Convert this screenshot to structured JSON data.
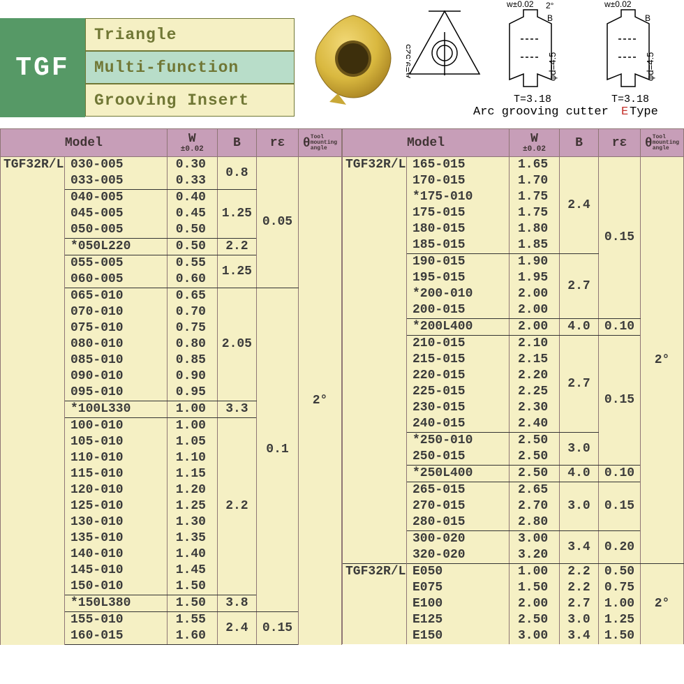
{
  "header": {
    "logo": "TGF",
    "labels": [
      "Triangle",
      "Multi-function",
      "Grooving Insert"
    ],
    "diagram": {
      "w_tol": "w±0.02",
      "angle": "2°",
      "b": "B",
      "a": "A=9.525",
      "d": "φd=4.5",
      "t": "T=3.18",
      "caption1": "Arc grooving cutter",
      "caption2_e": "E",
      "caption2_rest": " Type"
    }
  },
  "columns": {
    "model": "Model",
    "w_main": "W",
    "w_sub": "±0.02",
    "b": "B",
    "re": "rε",
    "theta": "θ",
    "theta_sub": "Tool\nmounting\nangle"
  },
  "table1": {
    "prefix": "TGF32R/L",
    "groups": [
      {
        "rows": [
          {
            "m": "030-005",
            "w": "0.30"
          },
          {
            "m": "033-005",
            "w": "0.33"
          }
        ],
        "b": "0.8"
      },
      {
        "rows": [
          {
            "m": "040-005",
            "w": "0.40"
          },
          {
            "m": "045-005",
            "w": "0.45"
          },
          {
            "m": "050-005",
            "w": "0.50"
          }
        ],
        "b": "1.25"
      },
      {
        "rows": [
          {
            "m": "*050L220",
            "w": "0.50"
          }
        ],
        "b": "2.2"
      },
      {
        "rows": [
          {
            "m": "055-005",
            "w": "0.55"
          },
          {
            "m": "060-005",
            "w": "0.60"
          }
        ],
        "b": "1.25"
      },
      {
        "rows": [
          {
            "m": "065-010",
            "w": "0.65"
          },
          {
            "m": "070-010",
            "w": "0.70"
          },
          {
            "m": "075-010",
            "w": "0.75"
          },
          {
            "m": "080-010",
            "w": "0.80"
          },
          {
            "m": "085-010",
            "w": "0.85"
          },
          {
            "m": "090-010",
            "w": "0.90"
          },
          {
            "m": "095-010",
            "w": "0.95"
          }
        ],
        "b": "2.05"
      },
      {
        "rows": [
          {
            "m": "*100L330",
            "w": "1.00"
          }
        ],
        "b": "3.3"
      },
      {
        "rows": [
          {
            "m": "100-010",
            "w": "1.00"
          },
          {
            "m": "105-010",
            "w": "1.05"
          },
          {
            "m": "110-010",
            "w": "1.10"
          },
          {
            "m": "115-010",
            "w": "1.15"
          },
          {
            "m": "120-010",
            "w": "1.20"
          },
          {
            "m": "125-010",
            "w": "1.25"
          },
          {
            "m": "130-010",
            "w": "1.30"
          },
          {
            "m": "135-010",
            "w": "1.35"
          },
          {
            "m": "140-010",
            "w": "1.40"
          },
          {
            "m": "145-010",
            "w": "1.45"
          },
          {
            "m": "150-010",
            "w": "1.50"
          }
        ],
        "b": "2.2"
      },
      {
        "rows": [
          {
            "m": "*150L380",
            "w": "1.50"
          }
        ],
        "b": "3.8"
      },
      {
        "rows": [
          {
            "m": "155-010",
            "w": "1.55"
          },
          {
            "m": "160-015",
            "w": "1.60"
          }
        ],
        "b": "2.4"
      }
    ],
    "re_groups": [
      {
        "span": 8,
        "val": "0.05"
      },
      {
        "span": 20,
        "val": "0.1"
      },
      {
        "span": 2,
        "val": "0.15"
      }
    ],
    "theta": "2°",
    "theta_span": 30
  },
  "table2": {
    "prefix": "TGF32R/L",
    "prefix2": "TGF32R/L",
    "rows_main": [
      {
        "m": "165-015",
        "w": "1.65",
        "b": "2.4",
        "b_span": 6,
        "re": "0.15",
        "re_span": 10
      },
      {
        "m": "170-015",
        "w": "1.70"
      },
      {
        "m": "*175-010",
        "w": "1.75"
      },
      {
        "m": "175-015",
        "w": "1.75"
      },
      {
        "m": "180-015",
        "w": "1.80"
      },
      {
        "m": "185-015",
        "w": "1.85"
      },
      {
        "m": "190-015",
        "w": "1.90",
        "b": "2.7",
        "b_span": 4
      },
      {
        "m": "195-015",
        "w": "1.95"
      },
      {
        "m": "*200-010",
        "w": "2.00"
      },
      {
        "m": "200-015",
        "w": "2.00"
      },
      {
        "m": "*200L400",
        "w": "2.00",
        "b": "4.0",
        "b_span": 1,
        "re": "0.10",
        "re_span": 1
      },
      {
        "m": "210-015",
        "w": "2.10",
        "b": "2.7",
        "b_span": 6,
        "re": "0.15",
        "re_span": 8
      },
      {
        "m": "215-015",
        "w": "2.15"
      },
      {
        "m": "220-015",
        "w": "2.20"
      },
      {
        "m": "225-015",
        "w": "2.25"
      },
      {
        "m": "230-015",
        "w": "2.30"
      },
      {
        "m": "240-015",
        "w": "2.40"
      },
      {
        "m": "*250-010",
        "w": "2.50",
        "b": "3.0",
        "b_span": 2
      },
      {
        "m": "250-015",
        "w": "2.50"
      },
      {
        "m": "*250L400",
        "w": "2.50",
        "b": "4.0",
        "b_span": 1,
        "re": "0.10",
        "re_span": 1
      },
      {
        "m": "265-015",
        "w": "2.65",
        "b": "3.0",
        "b_span": 3,
        "re": "0.15",
        "re_span": 3
      },
      {
        "m": "270-015",
        "w": "2.70"
      },
      {
        "m": "280-015",
        "w": "2.80"
      },
      {
        "m": "300-020",
        "w": "3.00",
        "b": "3.4",
        "b_span": 2,
        "re": "0.20",
        "re_span": 2
      },
      {
        "m": "320-020",
        "w": "3.20"
      }
    ],
    "rows_e": [
      {
        "m": "E050",
        "w": "1.00",
        "b": "2.2",
        "re": "0.50"
      },
      {
        "m": "E075",
        "w": "1.50",
        "b": "2.2",
        "re": "0.75"
      },
      {
        "m": "E100",
        "w": "2.00",
        "b": "2.7",
        "re": "1.00"
      },
      {
        "m": "E125",
        "w": "2.50",
        "b": "3.0",
        "re": "1.25"
      },
      {
        "m": "E150",
        "w": "3.00",
        "b": "3.4",
        "re": "1.50"
      }
    ],
    "theta": "2°",
    "theta_span_main": 25,
    "theta_span_e": 5
  },
  "colors": {
    "header_bg": "#c79eb8",
    "cell_bg": "#f5f0c4",
    "logo_bg": "#569966"
  }
}
